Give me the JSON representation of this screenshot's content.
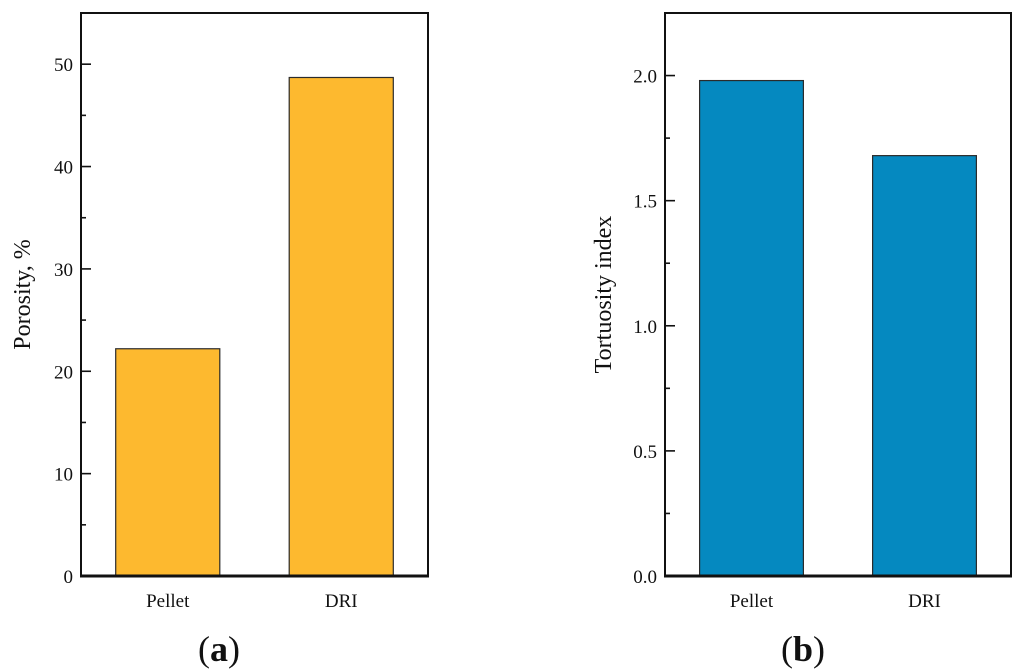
{
  "chart_data": [
    {
      "type": "bar",
      "panel": "a",
      "caption": "(a)",
      "caption_letter": "a",
      "title": "",
      "xlabel": "",
      "ylabel": "Porosity, %",
      "categories": [
        "Pellet",
        "DRI"
      ],
      "values": [
        22.2,
        48.7
      ],
      "ylim": [
        0,
        55
      ],
      "yticks_major": [
        0,
        10,
        20,
        30,
        40,
        50
      ],
      "yticks_major_labels": [
        "0",
        "10",
        "20",
        "30",
        "40",
        "50"
      ],
      "yticks_minor": [
        5,
        15,
        25,
        35,
        45
      ],
      "bar_color": "#FDB92F",
      "edge_color": "#2B2B2B",
      "grid": false,
      "legend": "none"
    },
    {
      "type": "bar",
      "panel": "b",
      "caption": "(b)",
      "caption_letter": "b",
      "title": "",
      "xlabel": "",
      "ylabel": "Tortuosity index",
      "categories": [
        "Pellet",
        "DRI"
      ],
      "values": [
        1.98,
        1.68
      ],
      "ylim": [
        0,
        2.25
      ],
      "yticks_major": [
        0.0,
        0.5,
        1.0,
        1.5,
        2.0
      ],
      "yticks_major_labels": [
        "0.0",
        "0.5",
        "1.0",
        "1.5",
        "2.0"
      ],
      "yticks_minor": [
        0.25,
        0.75,
        1.25,
        1.75
      ],
      "bar_color": "#0589C0",
      "edge_color": "#1F2B33",
      "grid": false,
      "legend": "none"
    }
  ]
}
